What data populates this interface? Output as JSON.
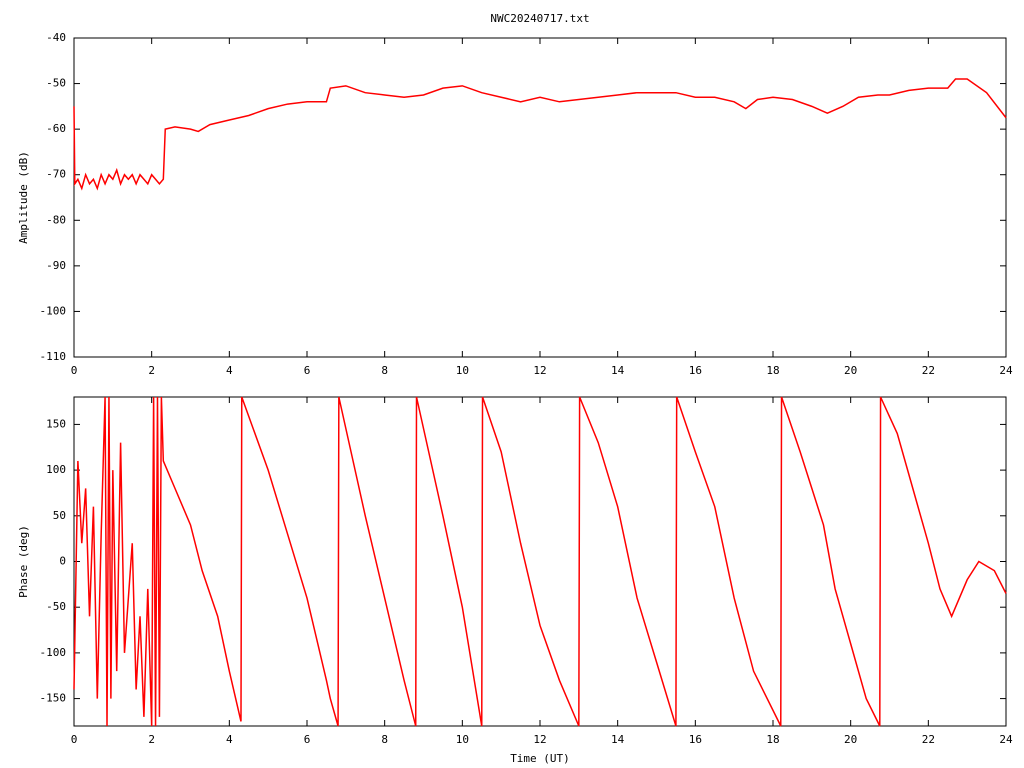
{
  "chart_data": [
    {
      "type": "line",
      "title": "NWC20240717.txt",
      "y_label": "Amplitude (dB)",
      "xlim": [
        0,
        24
      ],
      "xticks": [
        0,
        2,
        4,
        6,
        8,
        10,
        12,
        14,
        16,
        18,
        20,
        22,
        24
      ],
      "ylim": [
        -110,
        -40
      ],
      "yticks": [
        -110,
        -100,
        -90,
        -80,
        -70,
        -60,
        -50,
        -40
      ],
      "series": [
        {
          "color": "#ff0000",
          "x": [
            0,
            0.02,
            0.1,
            0.2,
            0.3,
            0.4,
            0.5,
            0.6,
            0.7,
            0.8,
            0.9,
            1.0,
            1.1,
            1.2,
            1.3,
            1.4,
            1.5,
            1.6,
            1.7,
            1.8,
            1.9,
            2.0,
            2.1,
            2.2,
            2.3,
            2.35,
            2.6,
            3.0,
            3.2,
            3.5,
            4,
            4.5,
            5,
            5.5,
            6,
            6.5,
            6.6,
            7,
            7.5,
            8,
            8.5,
            9,
            9.5,
            10,
            10.5,
            11,
            11.5,
            12,
            12.5,
            13,
            13.5,
            14,
            14.5,
            15,
            15.5,
            16,
            16.5,
            17,
            17.3,
            17.6,
            18,
            18.5,
            19,
            19.4,
            19.8,
            20.2,
            20.7,
            21,
            21.5,
            22,
            22.5,
            22.7,
            23,
            23.5,
            24
          ],
          "values": [
            -55,
            -72,
            -71,
            -73,
            -70,
            -72,
            -71,
            -73,
            -70,
            -72,
            -70,
            -71,
            -69,
            -72,
            -70,
            -71,
            -70,
            -72,
            -70,
            -71,
            -72,
            -70,
            -71,
            -72,
            -71,
            -60,
            -59.5,
            -60,
            -60.5,
            -59,
            -58,
            -57,
            -55.5,
            -54.5,
            -54,
            -54,
            -51,
            -50.5,
            -52,
            -52.5,
            -53,
            -52.5,
            -51,
            -50.5,
            -52,
            -53,
            -54,
            -53,
            -54,
            -53.5,
            -53,
            -52.5,
            -52,
            -52,
            -52,
            -53,
            -53,
            -54,
            -55.5,
            -53.5,
            -53,
            -53.5,
            -55,
            -56.5,
            -55,
            -53,
            -52.5,
            -52.5,
            -51.5,
            -51,
            -51,
            -49,
            -49,
            -52,
            -57.5
          ]
        }
      ]
    },
    {
      "type": "line",
      "x_label": "Time (UT)",
      "y_label": "Phase (deg)",
      "xlim": [
        0,
        24
      ],
      "xticks": [
        0,
        2,
        4,
        6,
        8,
        10,
        12,
        14,
        16,
        18,
        20,
        22,
        24
      ],
      "ylim": [
        -180,
        180
      ],
      "yticks": [
        -150,
        -100,
        -50,
        0,
        50,
        100,
        150
      ],
      "series": [
        {
          "color": "#ff0000",
          "x": [
            0,
            0.1,
            0.2,
            0.3,
            0.4,
            0.5,
            0.6,
            0.7,
            0.8,
            0.85,
            0.9,
            0.95,
            1.0,
            1.1,
            1.2,
            1.3,
            1.5,
            1.6,
            1.7,
            1.8,
            1.9,
            2.0,
            2.05,
            2.1,
            2.15,
            2.2,
            2.25,
            2.3,
            2.6,
            3.0,
            3.3,
            3.7,
            4.0,
            4.3,
            4.32,
            5,
            5.5,
            6,
            6.5,
            6.6,
            6.8,
            6.82,
            7.5,
            8,
            8.5,
            8.8,
            8.82,
            9.5,
            10,
            10.5,
            10.52,
            11,
            11.5,
            12,
            12.5,
            13,
            13.02,
            13.5,
            14,
            14.5,
            15,
            15.5,
            15.52,
            16,
            16.5,
            17,
            17.5,
            18.2,
            18.22,
            18.7,
            19,
            19.3,
            19.6,
            20,
            20.4,
            20.75,
            20.77,
            21.2,
            21.6,
            22,
            22.3,
            22.6,
            23,
            23.3,
            23.7,
            24
          ],
          "values": [
            -140,
            110,
            20,
            80,
            -60,
            60,
            -150,
            30,
            180,
            -180,
            180,
            -150,
            100,
            -120,
            130,
            -100,
            20,
            -140,
            -60,
            -170,
            -30,
            -180,
            180,
            -180,
            180,
            -170,
            180,
            110,
            80,
            40,
            -10,
            -60,
            -120,
            -175,
            180,
            100,
            30,
            -40,
            -130,
            -150,
            -180,
            180,
            50,
            -40,
            -130,
            -180,
            180,
            50,
            -50,
            -180,
            180,
            120,
            20,
            -70,
            -130,
            -180,
            180,
            130,
            60,
            -40,
            -110,
            -180,
            180,
            120,
            60,
            -40,
            -120,
            -180,
            180,
            120,
            80,
            40,
            -30,
            -90,
            -150,
            -180,
            180,
            140,
            80,
            20,
            -30,
            -60,
            -20,
            0,
            -10,
            -35
          ]
        }
      ]
    }
  ]
}
